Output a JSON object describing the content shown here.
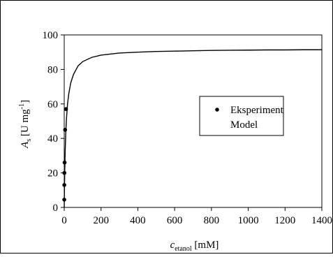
{
  "chart_data": {
    "type": "scatter",
    "title": "",
    "xlabel": {
      "main": "c",
      "sub": "etanol",
      "rest": " [mM]"
    },
    "ylabel": {
      "main": "A",
      "sub": "s",
      "rest": " [U mg",
      "sup": "-1",
      "close": "]"
    },
    "xlim": [
      0,
      1400
    ],
    "ylim": [
      0,
      100
    ],
    "x_ticks": [
      0,
      200,
      400,
      600,
      800,
      1000,
      1200,
      1400
    ],
    "y_ticks": [
      0,
      20,
      40,
      60,
      80,
      100
    ],
    "legend_position": "right",
    "series": [
      {
        "name": "Eksperiment",
        "type": "scatter",
        "x": [
          0.2,
          0.5,
          1,
          2,
          5,
          10
        ],
        "y": [
          4.5,
          13,
          20,
          26,
          45,
          57
        ]
      },
      {
        "name": "Model",
        "type": "line",
        "x": [
          0,
          1,
          2,
          3,
          5,
          8,
          12,
          18,
          25,
          35,
          50,
          75,
          100,
          150,
          200,
          300,
          400,
          500,
          600,
          700,
          800,
          900,
          1000,
          1100,
          1200,
          1300,
          1400
        ],
        "y": [
          0,
          8.5,
          16,
          22,
          32,
          42,
          51,
          60,
          66,
          72,
          77,
          82,
          84.5,
          87,
          88.3,
          89.5,
          90,
          90.4,
          90.6,
          90.8,
          91,
          91.1,
          91.2,
          91.3,
          91.3,
          91.4,
          91.4
        ]
      }
    ],
    "colors": {
      "axis": "#000000",
      "marker": "#000000",
      "line": "#000000"
    }
  }
}
